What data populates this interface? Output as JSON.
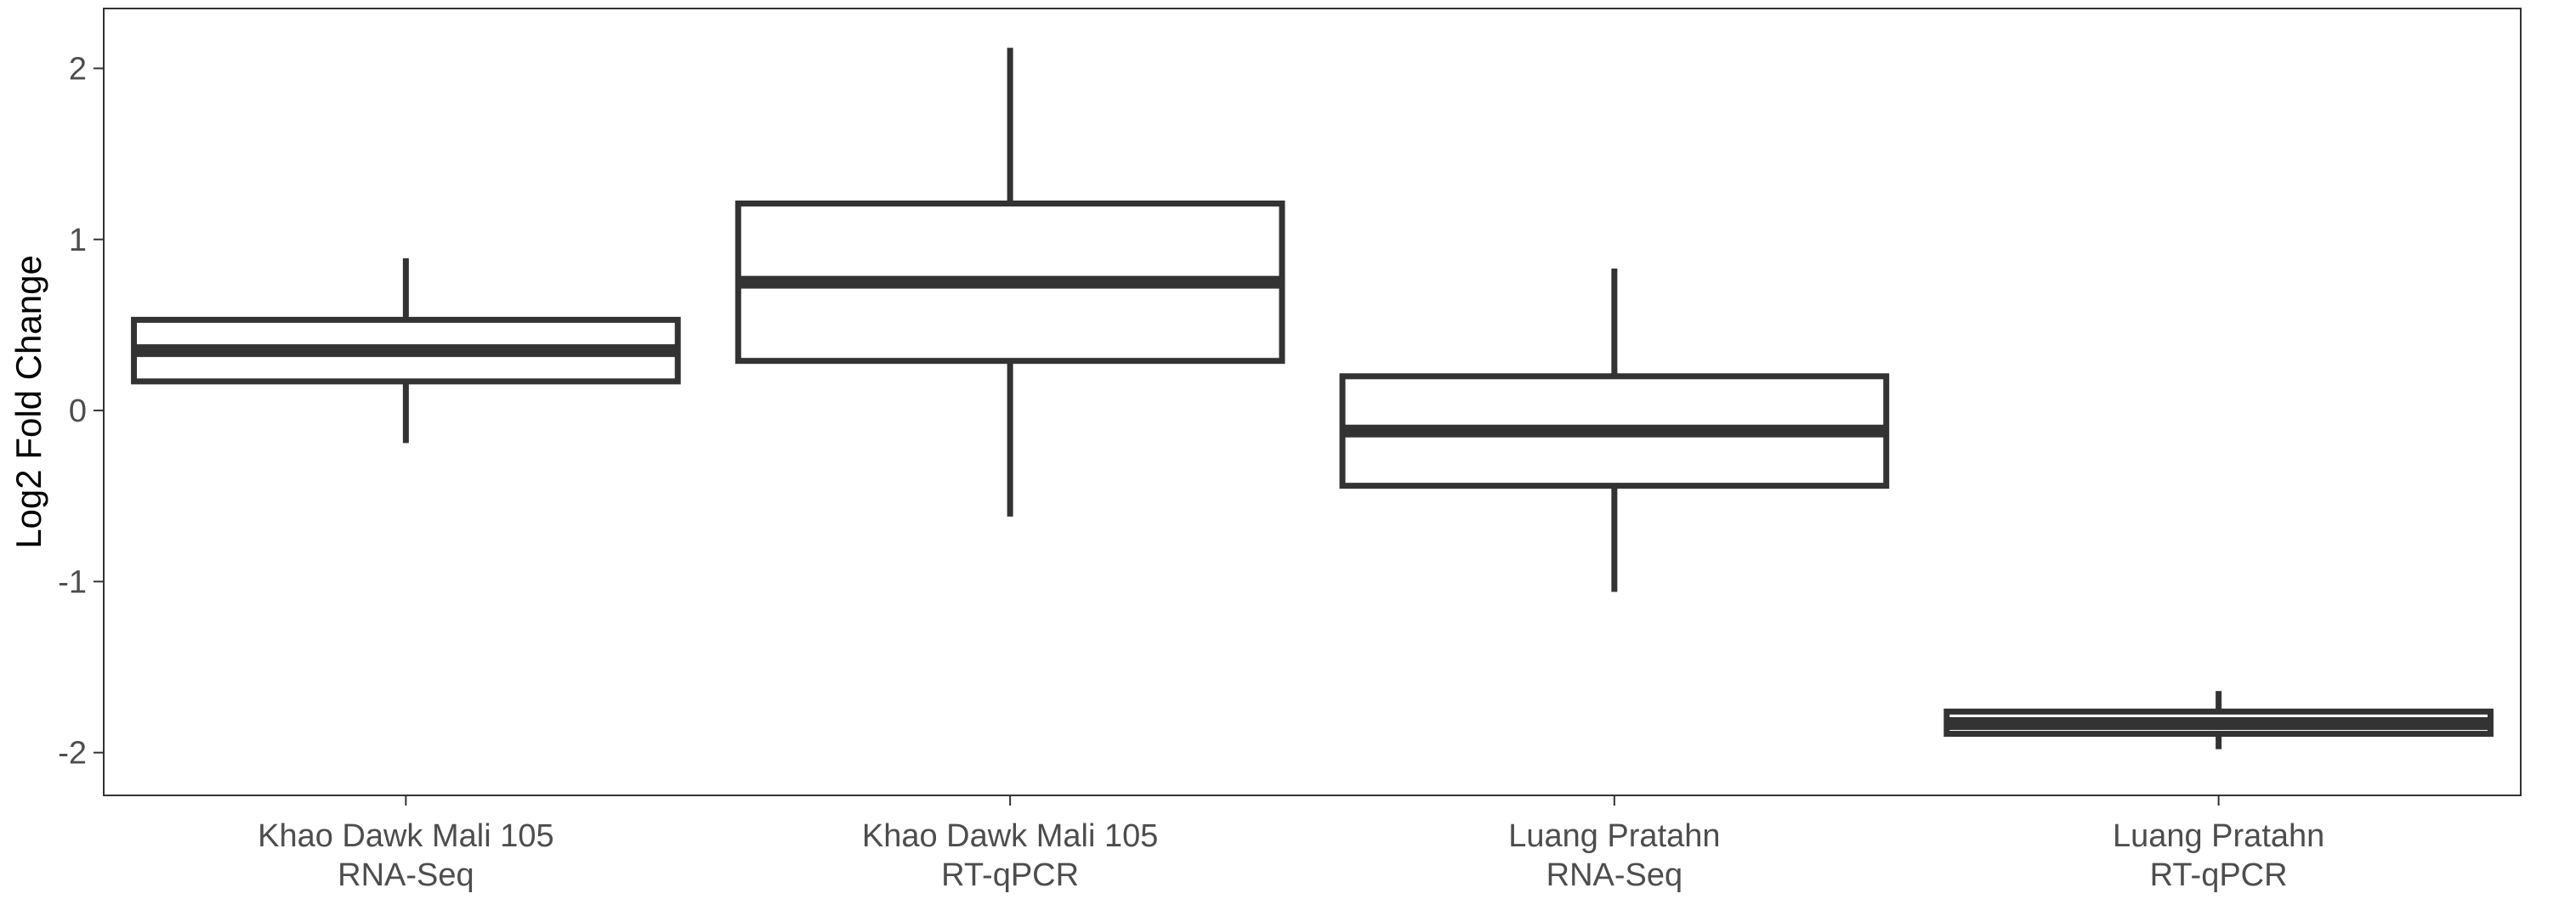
{
  "chart_data": {
    "type": "box",
    "title": "",
    "xlabel": "",
    "ylabel": "Log2 Fold Change",
    "ylim": [
      -2.25,
      2.35
    ],
    "yticks": [
      -2,
      -1,
      0,
      1,
      2
    ],
    "grid": false,
    "legend": "none",
    "colors": {
      "stroke": "#333333",
      "fill": "#ffffff",
      "axis": "#333333",
      "tick_text": "#4d4d4d"
    },
    "categories": [
      {
        "line1": "Khao Dawk Mali 105",
        "line2": "RNA-Seq"
      },
      {
        "line1": "Khao Dawk Mali 105",
        "line2": "RT-qPCR"
      },
      {
        "line1": "Luang Pratahn",
        "line2": "RNA-Seq"
      },
      {
        "line1": "Luang Pratahn",
        "line2": "RT-qPCR"
      }
    ],
    "boxes": [
      {
        "whisker_low": -0.19,
        "q1": 0.17,
        "median": 0.35,
        "q3": 0.53,
        "whisker_high": 0.89
      },
      {
        "whisker_low": -0.62,
        "q1": 0.29,
        "median": 0.75,
        "q3": 1.21,
        "whisker_high": 2.12
      },
      {
        "whisker_low": -1.06,
        "q1": -0.44,
        "median": -0.12,
        "q3": 0.2,
        "whisker_high": 0.83
      },
      {
        "whisker_low": -1.98,
        "q1": -1.89,
        "median": -1.83,
        "q3": -1.76,
        "whisker_high": -1.64
      }
    ]
  }
}
